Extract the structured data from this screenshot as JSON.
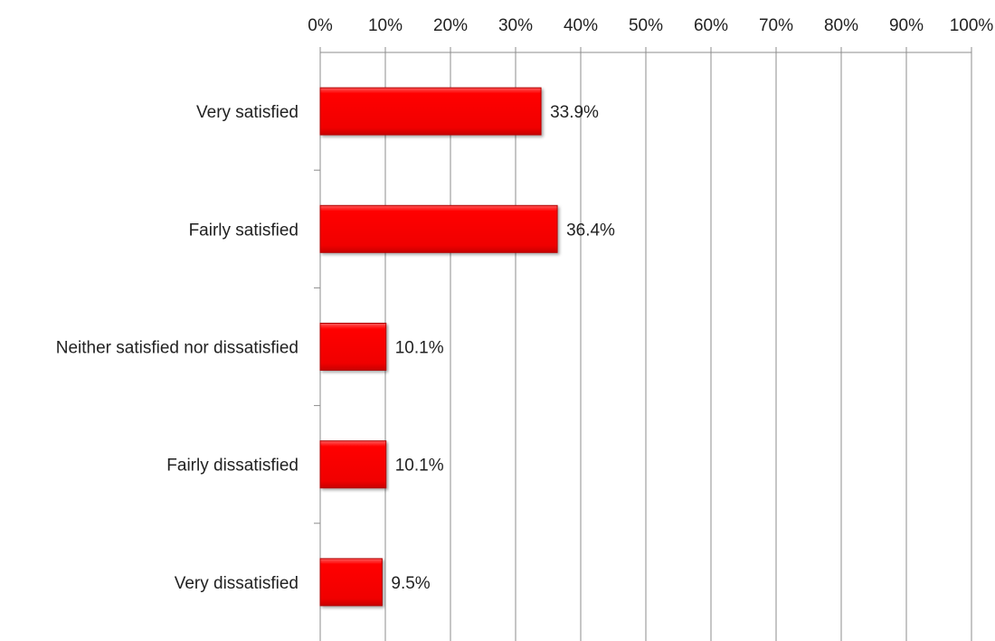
{
  "chart_data": {
    "type": "bar",
    "orientation": "horizontal",
    "categories": [
      "Very satisfied",
      "Fairly satisfied",
      "Neither satisfied nor dissatisfied",
      "Fairly dissatisfied",
      "Very dissatisfied"
    ],
    "values": [
      33.9,
      36.4,
      10.1,
      10.1,
      9.5
    ],
    "data_labels": [
      "33.9%",
      "36.4%",
      "10.1%",
      "10.1%",
      "9.5%"
    ],
    "xlim": [
      0,
      100
    ],
    "x_ticks": [
      "0%",
      "10%",
      "20%",
      "30%",
      "40%",
      "50%",
      "60%",
      "70%",
      "80%",
      "90%",
      "100%"
    ],
    "x_axis_position": "top",
    "grid": true,
    "legend": "none",
    "colors": {
      "bar": "#ff0000",
      "bar_edge": "#b00000",
      "grid": "#8c8c8c"
    }
  }
}
